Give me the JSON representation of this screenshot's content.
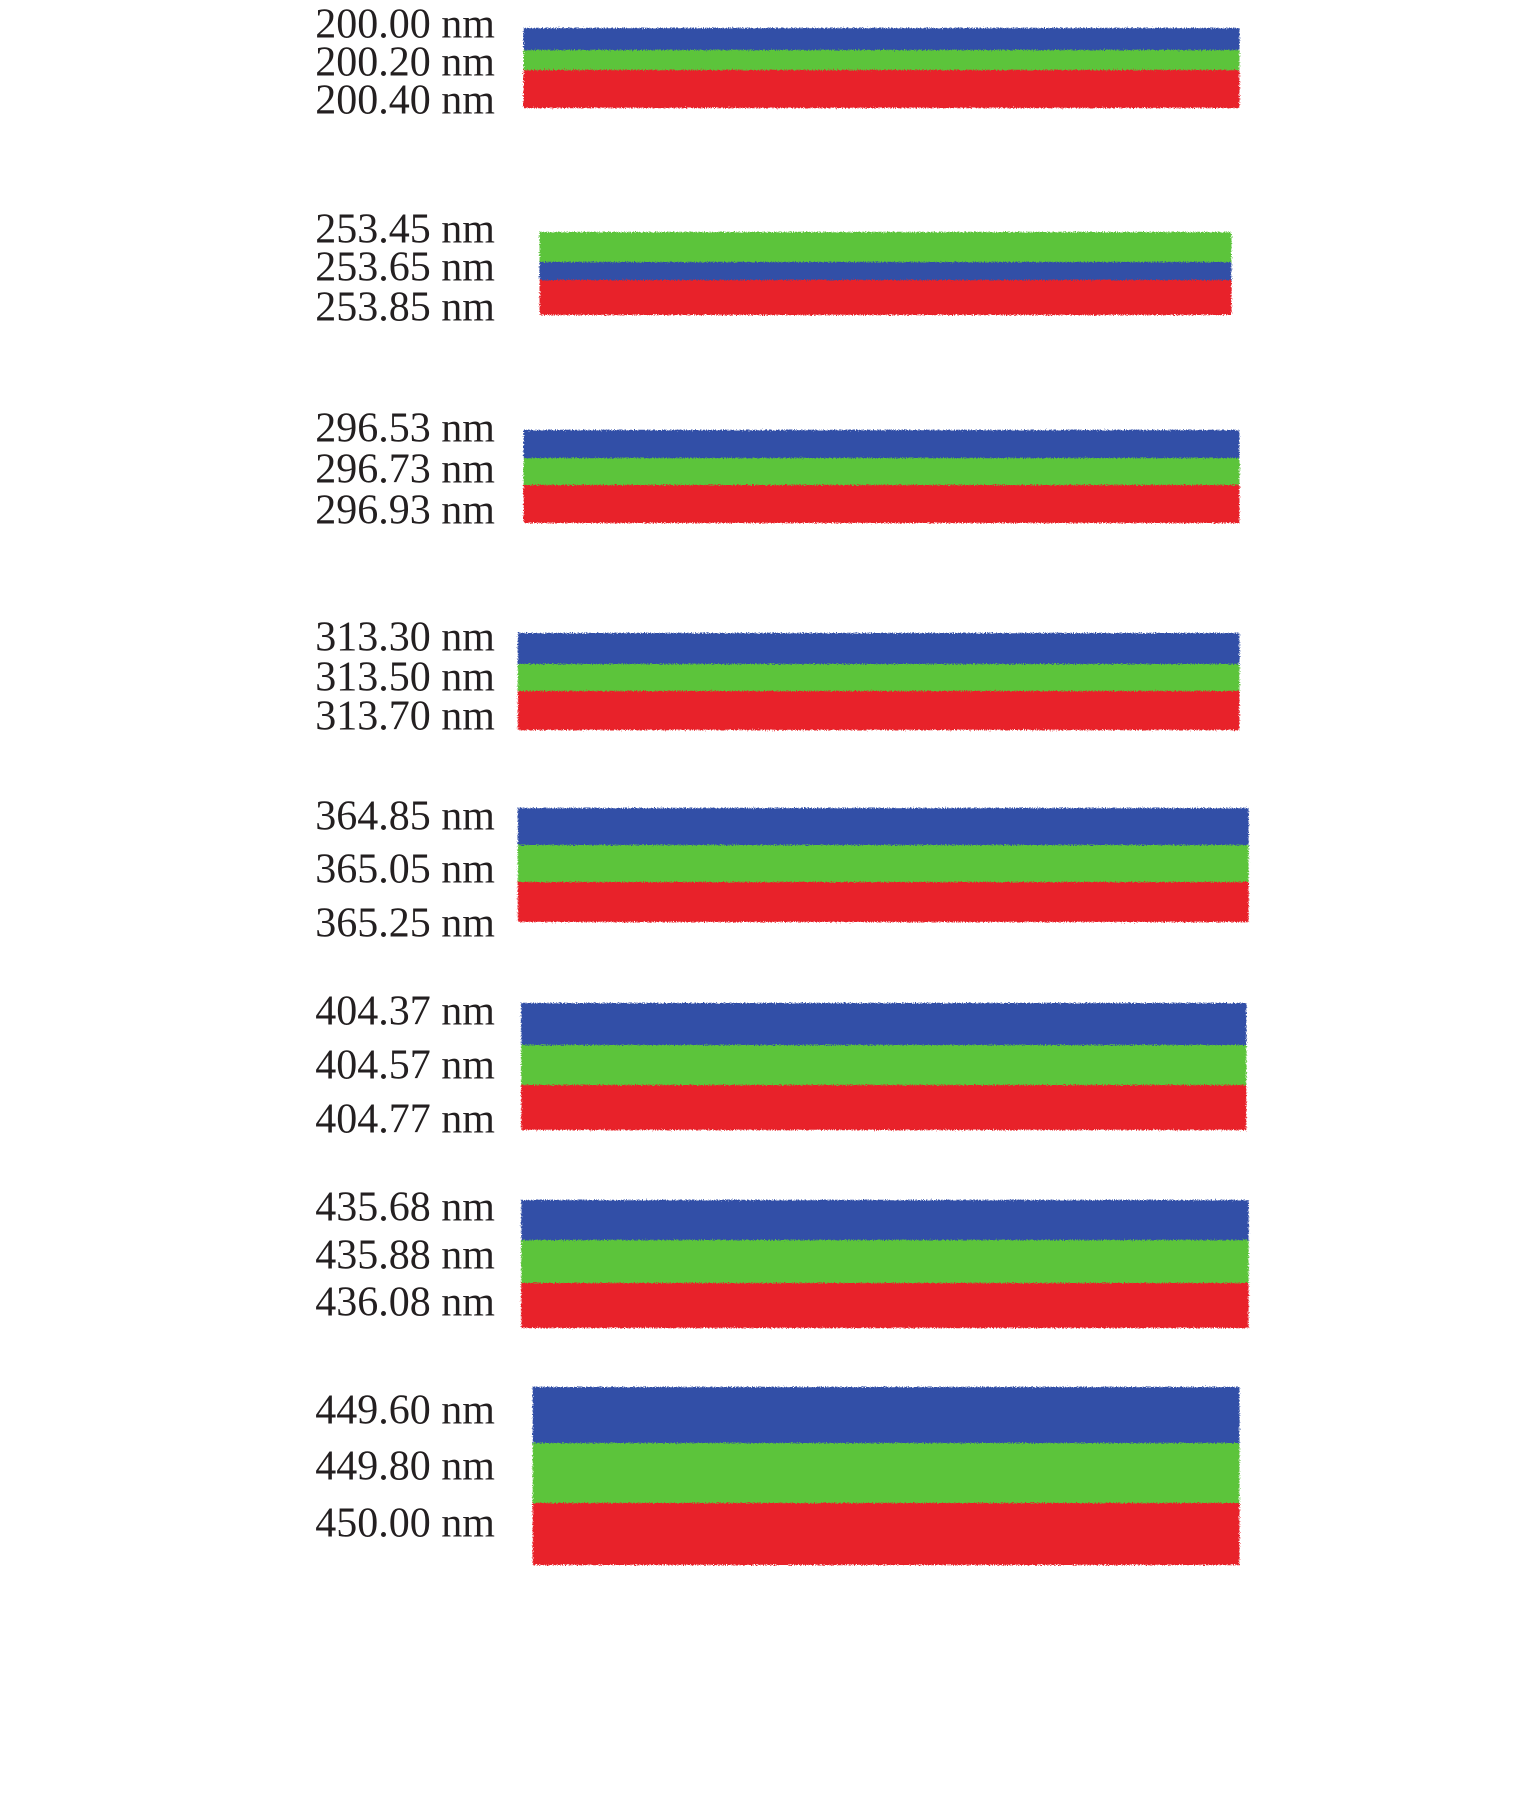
{
  "colors": {
    "blue": "#3150a7",
    "green": "#5cc43b",
    "red": "#e8222b"
  },
  "groups": [
    {
      "labels": [
        "200.00 nm",
        "200.20 nm",
        "200.40 nm"
      ],
      "bands": [
        "blue",
        "green",
        "red"
      ]
    },
    {
      "labels": [
        "253.45 nm",
        "253.65 nm",
        "253.85 nm"
      ],
      "bands": [
        "green",
        "blue",
        "red"
      ]
    },
    {
      "labels": [
        "296.53 nm",
        "296.73 nm",
        "296.93 nm"
      ],
      "bands": [
        "blue",
        "green",
        "red"
      ]
    },
    {
      "labels": [
        "313.30 nm",
        "313.50 nm",
        "313.70 nm"
      ],
      "bands": [
        "blue",
        "green",
        "red"
      ]
    },
    {
      "labels": [
        "364.85 nm",
        "365.05 nm",
        "365.25 nm"
      ],
      "bands": [
        "blue",
        "green",
        "red"
      ]
    },
    {
      "labels": [
        "404.37 nm",
        "404.57 nm",
        "404.77 nm"
      ],
      "bands": [
        "blue",
        "green",
        "red"
      ]
    },
    {
      "labels": [
        "435.68 nm",
        "435.88 nm",
        "436.08 nm"
      ],
      "bands": [
        "blue",
        "green",
        "red"
      ]
    },
    {
      "labels": [
        "449.60 nm",
        "449.80 nm",
        "450.00 nm"
      ],
      "bands": [
        "blue",
        "green",
        "red"
      ]
    }
  ]
}
